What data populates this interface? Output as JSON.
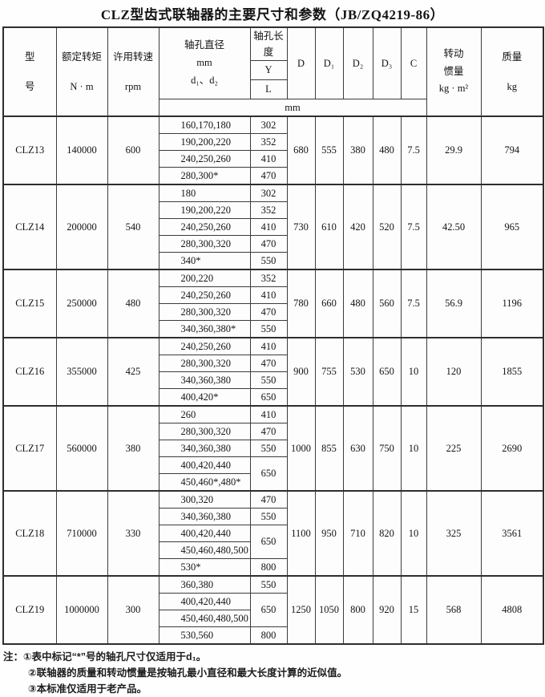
{
  "title": "CLZ型齿式联轴器的主要尺寸和参数（JB/ZQ4219-86）",
  "header": {
    "model": "型\n号",
    "torque": "额定转矩\nN · m",
    "speed": "许用转速\nrpm",
    "bore_diameter": "轴孔直径\nmm\nd₁、d₂",
    "bore_length": "轴孔长度",
    "length_y": "Y",
    "length_l": "L",
    "d": "D",
    "d1": "D₁",
    "d2": "D₂",
    "d3": "D₃",
    "c": "C",
    "inertia": "转动\n惯量\nkg · m²",
    "mass": "质量\nkg",
    "unit": "mm"
  },
  "groups": [
    {
      "model": "CLZ13",
      "torque": "140000",
      "speed": "600",
      "bores": [
        {
          "d": "160,170,180",
          "len": "302"
        },
        {
          "d": "190,200,220",
          "len": "352"
        },
        {
          "d": "240,250,260",
          "len": "410"
        },
        {
          "d": "280,300*",
          "len": "470"
        }
      ],
      "D": "680",
      "D1": "555",
      "D2": "380",
      "D3": "480",
      "C": "7.5",
      "inertia": "29.9",
      "mass": "794"
    },
    {
      "model": "CLZ14",
      "torque": "200000",
      "speed": "540",
      "bores": [
        {
          "d": "180",
          "len": "302"
        },
        {
          "d": "190,200,220",
          "len": "352"
        },
        {
          "d": "240,250,260",
          "len": "410"
        },
        {
          "d": "280,300,320",
          "len": "470"
        },
        {
          "d": "340*",
          "len": "550"
        }
      ],
      "D": "730",
      "D1": "610",
      "D2": "420",
      "D3": "520",
      "C": "7.5",
      "inertia": "42.50",
      "mass": "965"
    },
    {
      "model": "CLZ15",
      "torque": "250000",
      "speed": "480",
      "bores": [
        {
          "d": "200,220",
          "len": "352"
        },
        {
          "d": "240,250,260",
          "len": "410"
        },
        {
          "d": "280,300,320",
          "len": "470"
        },
        {
          "d": "340,360,380*",
          "len": "550"
        }
      ],
      "D": "780",
      "D1": "660",
      "D2": "480",
      "D3": "560",
      "C": "7.5",
      "inertia": "56.9",
      "mass": "1196"
    },
    {
      "model": "CLZ16",
      "torque": "355000",
      "speed": "425",
      "bores": [
        {
          "d": "240,250,260",
          "len": "410"
        },
        {
          "d": "280,300,320",
          "len": "470"
        },
        {
          "d": "340,360,380",
          "len": "550"
        },
        {
          "d": "400,420*",
          "len": "650"
        }
      ],
      "D": "900",
      "D1": "755",
      "D2": "530",
      "D3": "650",
      "C": "10",
      "inertia": "120",
      "mass": "1855"
    },
    {
      "model": "CLZ17",
      "torque": "560000",
      "speed": "380",
      "bores": [
        {
          "d": "260",
          "len": "410"
        },
        {
          "d": "280,300,320",
          "len": "470"
        },
        {
          "d": "340,360,380",
          "len": "550"
        },
        {
          "d": "400,420,440",
          "len": "650",
          "len_rows": 2
        },
        {
          "d": "450,460*,480*",
          "len": null
        }
      ],
      "D": "1000",
      "D1": "855",
      "D2": "630",
      "D3": "750",
      "C": "10",
      "inertia": "225",
      "mass": "2690"
    },
    {
      "model": "CLZ18",
      "torque": "710000",
      "speed": "330",
      "bores": [
        {
          "d": "300,320",
          "len": "470"
        },
        {
          "d": "340,360,380",
          "len": "550"
        },
        {
          "d": "400,420,440",
          "len": "650",
          "len_rows": 2
        },
        {
          "d": "450,460,480,500",
          "len": null
        },
        {
          "d": "530*",
          "len": "800"
        }
      ],
      "D": "1100",
      "D1": "950",
      "D2": "710",
      "D3": "820",
      "C": "10",
      "inertia": "325",
      "mass": "3561"
    },
    {
      "model": "CLZ19",
      "torque": "1000000",
      "speed": "300",
      "bores": [
        {
          "d": "360,380",
          "len": "550"
        },
        {
          "d": "400,420,440",
          "len": "650",
          "len_rows": 2
        },
        {
          "d": "450,460,480,500",
          "len": null
        },
        {
          "d": "530,560",
          "len": "800"
        }
      ],
      "D": "1250",
      "D1": "1050",
      "D2": "800",
      "D3": "920",
      "C": "15",
      "inertia": "568",
      "mass": "4808"
    }
  ],
  "notes": {
    "label": "注：",
    "items": [
      "①表中标记“*”号的轴孔尺寸仅适用于d₁。",
      "②联轴器的质量和转动惯量是按轴孔最小直径和最大长度计算的近似值。",
      "③本标准仅适用于老产品。"
    ]
  }
}
